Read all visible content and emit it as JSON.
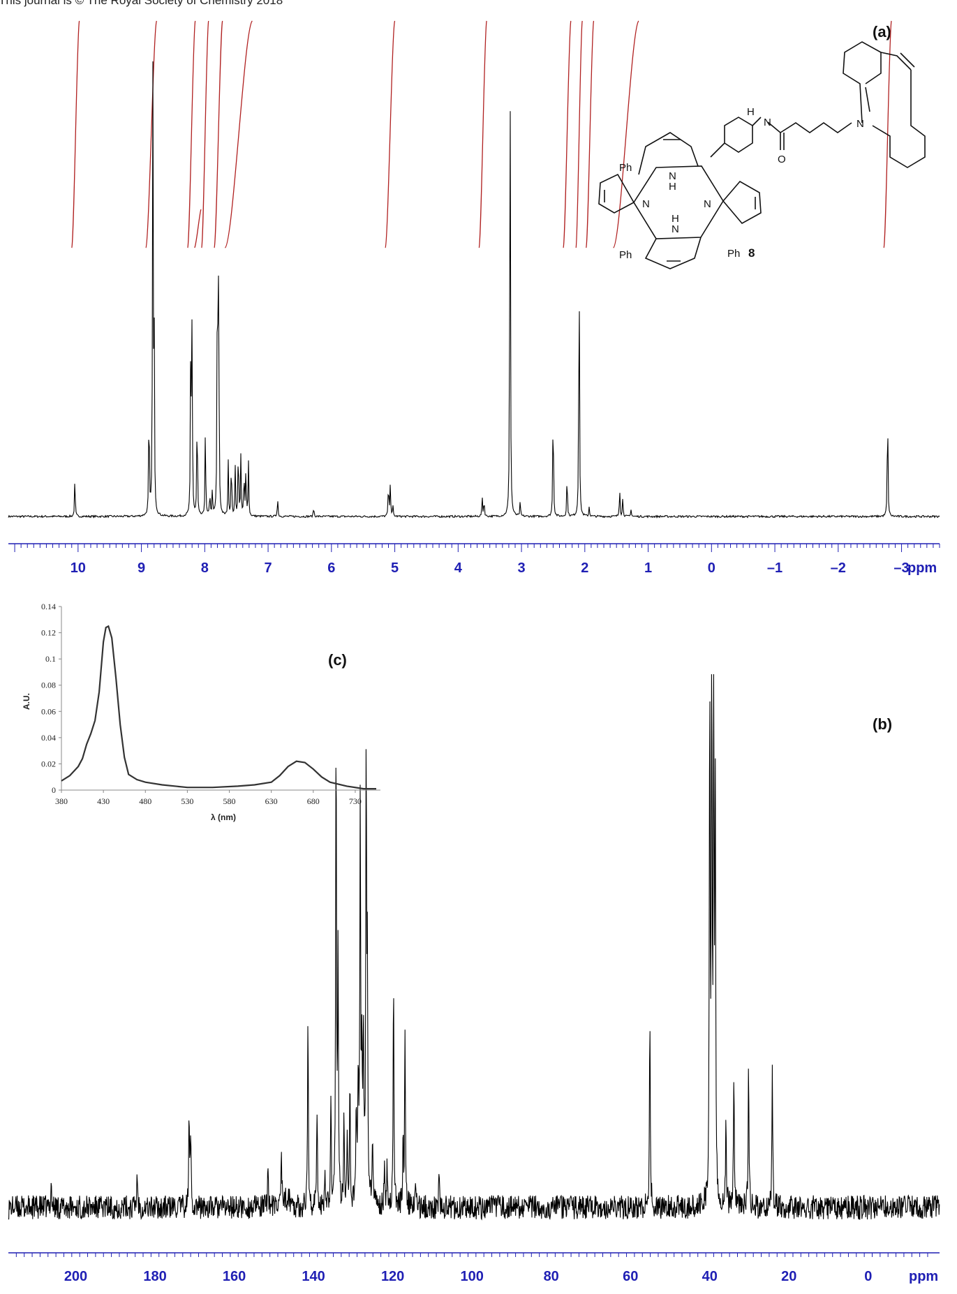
{
  "header": {
    "text": "This journal is © The Royal Society of Chemistry 2018"
  },
  "chart_data": [
    {
      "id": "a",
      "type": "line",
      "panel_label": "(a)",
      "unit_label": "ppm",
      "xlim": [
        11.1,
        -3.6
      ],
      "x_ticks": [
        10,
        9,
        8,
        7,
        6,
        5,
        4,
        3,
        2,
        1,
        0,
        -1,
        -2,
        -3
      ],
      "tick_labels": [
        "10",
        "9",
        "8",
        "7",
        "6",
        "5",
        "4",
        "3",
        "2",
        "1",
        "0",
        "–1",
        "–2",
        "–3"
      ],
      "peaks": [
        {
          "x": 10.05,
          "h": 0.08
        },
        {
          "x": 8.88,
          "h": 0.24
        },
        {
          "x": 8.82,
          "h": 0.88
        },
        {
          "x": 8.8,
          "h": 0.42
        },
        {
          "x": 8.22,
          "h": 0.4
        },
        {
          "x": 8.2,
          "h": 0.38
        },
        {
          "x": 8.12,
          "h": 0.23
        },
        {
          "x": 7.99,
          "h": 0.18
        },
        {
          "x": 7.92,
          "h": 0.05
        },
        {
          "x": 7.88,
          "h": 0.05
        },
        {
          "x": 7.8,
          "h": 0.58
        },
        {
          "x": 7.78,
          "h": 0.52
        },
        {
          "x": 7.63,
          "h": 0.11
        },
        {
          "x": 7.58,
          "h": 0.12
        },
        {
          "x": 7.52,
          "h": 0.1
        },
        {
          "x": 7.47,
          "h": 0.15
        },
        {
          "x": 7.43,
          "h": 0.12
        },
        {
          "x": 7.38,
          "h": 0.09
        },
        {
          "x": 7.35,
          "h": 0.1
        },
        {
          "x": 7.31,
          "h": 0.11
        },
        {
          "x": 6.85,
          "h": 0.04
        },
        {
          "x": 6.28,
          "h": 0.02
        },
        {
          "x": 5.1,
          "h": 0.07
        },
        {
          "x": 5.07,
          "h": 0.07
        },
        {
          "x": 5.03,
          "h": 0.02
        },
        {
          "x": 3.62,
          "h": 0.04
        },
        {
          "x": 3.59,
          "h": 0.035
        },
        {
          "x": 3.18,
          "h": 1.0
        },
        {
          "x": 3.02,
          "h": 0.03
        },
        {
          "x": 2.5,
          "h": 0.25
        },
        {
          "x": 2.28,
          "h": 0.09
        },
        {
          "x": 2.09,
          "h": 0.58
        },
        {
          "x": 1.93,
          "h": 0.02
        },
        {
          "x": 1.45,
          "h": 0.06
        },
        {
          "x": 1.4,
          "h": 0.04
        },
        {
          "x": 1.27,
          "h": 0.015
        },
        {
          "x": -2.78,
          "h": 0.24
        }
      ],
      "integral_regions": [
        [
          10.1,
          9.98
        ],
        [
          8.93,
          8.76
        ],
        [
          8.27,
          8.15
        ],
        [
          8.16,
          8.06
        ],
        [
          8.05,
          7.94
        ],
        [
          7.85,
          7.72
        ],
        [
          7.68,
          7.25
        ],
        [
          5.15,
          5.0
        ],
        [
          3.67,
          3.55
        ],
        [
          2.34,
          2.22
        ],
        [
          2.14,
          2.04
        ],
        [
          1.98,
          1.86
        ],
        [
          1.55,
          1.15
        ],
        [
          -2.72,
          -2.84
        ]
      ]
    },
    {
      "id": "b",
      "type": "line",
      "panel_label": "(b)",
      "unit_label": "ppm",
      "xlim": [
        217,
        -18
      ],
      "x_ticks": [
        200,
        180,
        160,
        140,
        120,
        100,
        80,
        60,
        40,
        20,
        0
      ],
      "tick_labels": [
        "200",
        "180",
        "160",
        "140",
        "120",
        "100",
        "80",
        "60",
        "40",
        "20",
        "0"
      ],
      "peaks": [
        {
          "x": 206.2,
          "h": 0.05
        },
        {
          "x": 184.5,
          "h": 0.07
        },
        {
          "x": 171.4,
          "h": 0.16
        },
        {
          "x": 171.0,
          "h": 0.14
        },
        {
          "x": 151.5,
          "h": 0.09
        },
        {
          "x": 148.1,
          "h": 0.12
        },
        {
          "x": 141.4,
          "h": 0.35
        },
        {
          "x": 139.1,
          "h": 0.18
        },
        {
          "x": 137.1,
          "h": 0.08
        },
        {
          "x": 135.6,
          "h": 0.2
        },
        {
          "x": 134.3,
          "h": 0.9
        },
        {
          "x": 133.8,
          "h": 0.45
        },
        {
          "x": 132.3,
          "h": 0.17
        },
        {
          "x": 131.5,
          "h": 0.15
        },
        {
          "x": 130.8,
          "h": 0.23
        },
        {
          "x": 129.2,
          "h": 0.18
        },
        {
          "x": 128.7,
          "h": 0.25
        },
        {
          "x": 128.2,
          "h": 0.77
        },
        {
          "x": 127.8,
          "h": 0.27
        },
        {
          "x": 127.4,
          "h": 0.32
        },
        {
          "x": 126.7,
          "h": 0.86
        },
        {
          "x": 126.4,
          "h": 0.4
        },
        {
          "x": 125.1,
          "h": 0.13
        },
        {
          "x": 122.1,
          "h": 0.09
        },
        {
          "x": 121.4,
          "h": 0.08
        },
        {
          "x": 119.8,
          "h": 0.42
        },
        {
          "x": 117.4,
          "h": 0.13
        },
        {
          "x": 116.9,
          "h": 0.33
        },
        {
          "x": 114.2,
          "h": 0.05
        },
        {
          "x": 108.3,
          "h": 0.06
        },
        {
          "x": 55.1,
          "h": 0.37
        },
        {
          "x": 40.0,
          "h": 0.99
        },
        {
          "x": 39.5,
          "h": 0.99
        },
        {
          "x": 39.0,
          "h": 0.99
        },
        {
          "x": 38.6,
          "h": 0.75
        },
        {
          "x": 35.9,
          "h": 0.18
        },
        {
          "x": 33.9,
          "h": 0.23
        },
        {
          "x": 30.2,
          "h": 0.27
        },
        {
          "x": 24.2,
          "h": 0.25
        }
      ]
    },
    {
      "id": "c",
      "type": "line",
      "panel_label": "(c)",
      "xlabel": "λ (nm)",
      "ylabel": "A.U.",
      "xlim": [
        380,
        760
      ],
      "ylim": [
        0,
        0.14
      ],
      "x_ticks": [
        380,
        430,
        480,
        530,
        580,
        630,
        680,
        730
      ],
      "y_ticks": [
        0,
        0.02,
        0.04,
        0.06,
        0.08,
        0.1,
        0.12,
        0.14
      ],
      "y_tick_labels": [
        "0",
        "0.02",
        "0.04",
        "0.06",
        "0.08",
        "0.1",
        "0.12",
        "0.14"
      ],
      "series": [
        {
          "x": [
            380,
            390,
            400,
            405,
            410,
            415,
            420,
            425,
            430,
            433,
            436,
            440,
            445,
            450,
            455,
            460,
            470,
            480,
            500,
            530,
            560,
            590,
            610,
            630,
            640,
            650,
            660,
            670,
            680,
            690,
            700,
            720,
            740,
            755
          ],
          "y": [
            0.007,
            0.011,
            0.018,
            0.024,
            0.035,
            0.043,
            0.053,
            0.075,
            0.113,
            0.124,
            0.125,
            0.116,
            0.085,
            0.05,
            0.025,
            0.012,
            0.008,
            0.006,
            0.004,
            0.002,
            0.002,
            0.003,
            0.004,
            0.006,
            0.011,
            0.018,
            0.022,
            0.021,
            0.016,
            0.01,
            0.006,
            0.003,
            0.001,
            0.001
          ]
        }
      ]
    }
  ],
  "structure": {
    "labels": [
      "Ph",
      "Ph",
      "Ph",
      "N",
      "N",
      "H",
      "N",
      "H",
      "N",
      "H",
      "N",
      "O",
      "N"
    ],
    "compound_number": "8"
  }
}
